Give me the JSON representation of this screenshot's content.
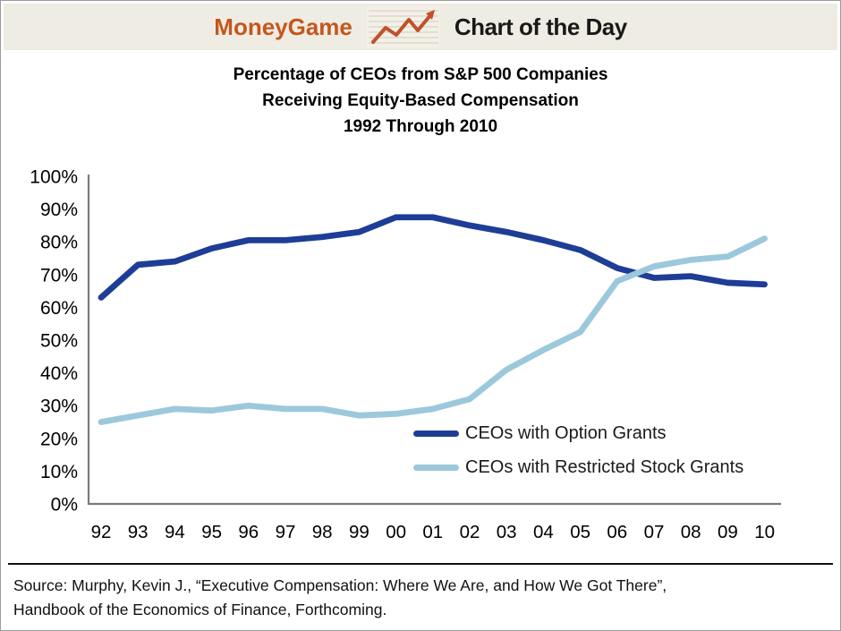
{
  "header": {
    "brand": "MoneyGame",
    "title": "Chart of the Day",
    "brand_color": "#c4571d",
    "bg_color": "#efece4",
    "icon": "trend-arrow-icon",
    "icon_color": "#c0512a"
  },
  "title": {
    "line1": "Percentage of CEOs from S&P 500 Companies",
    "line2": "Receiving Equity-Based Compensation",
    "line3": "1992 Through 2010"
  },
  "chart_data": {
    "type": "line",
    "title": "Percentage of CEOs from S&P 500 Companies Receiving Equity-Based Compensation 1992 Through 2010",
    "categories": [
      "92",
      "93",
      "94",
      "95",
      "96",
      "97",
      "98",
      "99",
      "00",
      "01",
      "02",
      "03",
      "04",
      "05",
      "06",
      "07",
      "08",
      "09",
      "10"
    ],
    "series": [
      {
        "name": "CEOs with Option Grants",
        "color": "#1e3d96",
        "values": [
          63,
          73,
          74,
          78,
          80.5,
          80.5,
          81.5,
          83,
          87.5,
          87.5,
          85,
          83,
          80.5,
          77.5,
          72,
          69,
          69.5,
          67.5,
          67
        ]
      },
      {
        "name": "CEOs with Restricted Stock Grants",
        "color": "#9cc8dc",
        "values": [
          25,
          27,
          29,
          28.5,
          30,
          29,
          29,
          27,
          27.5,
          29,
          32,
          41,
          47,
          52.5,
          68,
          72.5,
          74.5,
          75.5,
          81
        ]
      }
    ],
    "xlabel": "",
    "ylabel": "",
    "ylim": [
      0,
      100
    ],
    "ytick_step": 10,
    "ytick_suffix": "%",
    "grid": false,
    "legend_position": "inside-bottom-right",
    "axis_color": "#7a7a7a",
    "tick_label_color": "#000000"
  },
  "source": {
    "line1": "Source: Murphy, Kevin J., “Executive Compensation: Where We Are, and How We Got There”,",
    "line2": "Handbook of the Economics of Finance, Forthcoming."
  }
}
